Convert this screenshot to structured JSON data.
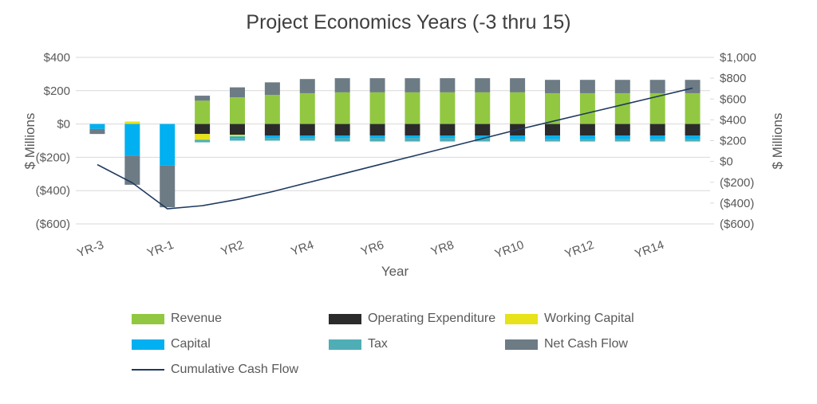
{
  "chart_data": {
    "type": "bar",
    "subtype": "stacked-bars-with-cumulative-line",
    "title": "Project Economics Years (-3 thru 15)",
    "categories": [
      "YR-3",
      "YR-2",
      "YR-1",
      "YR1",
      "YR2",
      "YR3",
      "YR4",
      "YR5",
      "YR6",
      "YR7",
      "YR8",
      "YR9",
      "YR10",
      "YR11",
      "YR12",
      "YR13",
      "YR14",
      "YR15"
    ],
    "series": [
      {
        "name": "Revenue",
        "color": "#92C841",
        "values": [
          0,
          0,
          0,
          140,
          160,
          175,
          185,
          190,
          190,
          190,
          190,
          190,
          190,
          185,
          185,
          185,
          185,
          185
        ]
      },
      {
        "name": "Operating Expenditure",
        "color": "#2B2B2B",
        "values": [
          0,
          0,
          0,
          -60,
          -65,
          -70,
          -70,
          -70,
          -70,
          -70,
          -70,
          -70,
          -70,
          -70,
          -70,
          -70,
          -70,
          -70
        ]
      },
      {
        "name": "Working Capital",
        "color": "#E7E219",
        "values": [
          0,
          15,
          0,
          -35,
          -10,
          0,
          0,
          0,
          0,
          0,
          0,
          0,
          0,
          0,
          0,
          0,
          0,
          0
        ]
      },
      {
        "name": "Capital",
        "color": "#00B0F0",
        "values": [
          -30,
          -190,
          -250,
          0,
          -10,
          -15,
          -15,
          -15,
          -15,
          -15,
          -15,
          -15,
          -20,
          -20,
          -20,
          -20,
          -20,
          -20
        ]
      },
      {
        "name": "Tax",
        "color": "#4FAEB5",
        "values": [
          0,
          0,
          0,
          -15,
          -15,
          -15,
          -15,
          -20,
          -20,
          -20,
          -20,
          -20,
          -15,
          -15,
          -15,
          -15,
          -15,
          -15
        ]
      },
      {
        "name": "Net Cash Flow",
        "color": "#6D7B85",
        "values": [
          -30,
          -175,
          -250,
          30,
          60,
          75,
          85,
          85,
          85,
          85,
          85,
          85,
          85,
          80,
          80,
          80,
          80,
          80
        ]
      }
    ],
    "line": {
      "name": "Cumulative Cash Flow",
      "color": "#1F3A60",
      "axis": "right",
      "values": [
        -30,
        -205,
        -455,
        -425,
        -365,
        -290,
        -205,
        -120,
        -35,
        50,
        135,
        220,
        305,
        385,
        465,
        545,
        625,
        705
      ]
    },
    "left_axis": {
      "title": "$ Millions",
      "min": -600,
      "max": 400,
      "tick_values": [
        400,
        200,
        0,
        -200,
        -400,
        -600
      ],
      "ticks": [
        "$400",
        "$200",
        "$0",
        "($200)",
        "($400)",
        "($600)"
      ]
    },
    "right_axis": {
      "title": "$ Millions",
      "min": -600,
      "max": 1000,
      "tick_values": [
        1000,
        800,
        600,
        400,
        200,
        0,
        -200,
        -400,
        -600
      ],
      "ticks": [
        "$1,000",
        "$800",
        "$600",
        "$400",
        "$200",
        "$0",
        "($200)",
        "($400)",
        "($600)"
      ]
    },
    "x_axis": {
      "title": "Year",
      "tick_every": 2
    },
    "grid": true,
    "grid_color": "#D9D9D9",
    "legend_position": "bottom"
  },
  "legend": {
    "items": [
      {
        "label": "Revenue",
        "color": "#92C841",
        "type": "rect"
      },
      {
        "label": "Operating Expenditure",
        "color": "#2B2B2B",
        "type": "rect"
      },
      {
        "label": "Working Capital",
        "color": "#E7E219",
        "type": "rect"
      },
      {
        "label": "Capital",
        "color": "#00B0F0",
        "type": "rect"
      },
      {
        "label": "Tax",
        "color": "#4FAEB5",
        "type": "rect"
      },
      {
        "label": "Net Cash Flow",
        "color": "#6D7B85",
        "type": "rect"
      },
      {
        "label": "Cumulative Cash Flow",
        "color": "#1F3A60",
        "type": "line"
      }
    ]
  }
}
